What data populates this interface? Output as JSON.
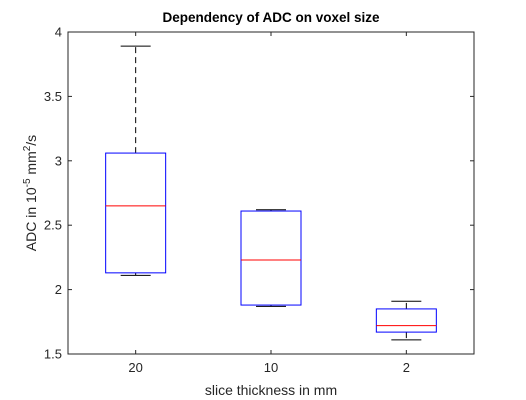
{
  "chart_data": {
    "type": "boxplot",
    "title": "Dependency of ADC on voxel size",
    "xlabel": "slice thickness in mm",
    "ylabel": {
      "prefix": "ADC in 10",
      "exp1": "-5",
      "mid": " mm",
      "exp2": "2",
      "suffix": "/s"
    },
    "ylim": [
      1.5,
      4
    ],
    "yticks": [
      1.5,
      2,
      2.5,
      3,
      3.5,
      4
    ],
    "categories": [
      "20",
      "10",
      "2"
    ],
    "boxes": [
      {
        "category": "20",
        "whisker_low": 2.11,
        "q1": 2.13,
        "median": 2.65,
        "q3": 3.06,
        "whisker_high": 3.89
      },
      {
        "category": "10",
        "whisker_low": 1.87,
        "q1": 1.88,
        "median": 2.23,
        "q3": 2.61,
        "whisker_high": 2.62
      },
      {
        "category": "2",
        "whisker_low": 1.61,
        "q1": 1.67,
        "median": 1.72,
        "q3": 1.85,
        "whisker_high": 1.91
      }
    ],
    "grid": false,
    "colors": {
      "box": "#0000ff",
      "median": "#ff0000",
      "whisker": "#000000",
      "axes": "#262626"
    }
  }
}
